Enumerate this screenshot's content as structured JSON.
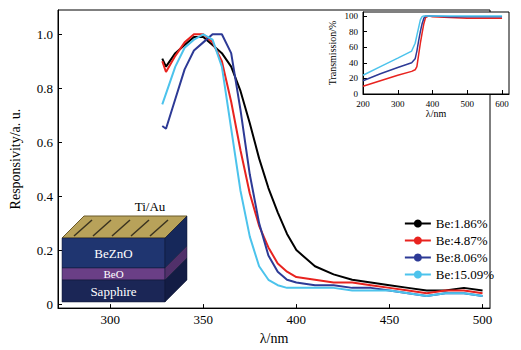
{
  "chart_data": [
    {
      "type": "line",
      "x_label": "λ/nm",
      "y_label": "Responsivity/a. u.",
      "xlim": [
        272,
        504
      ],
      "xticks": [
        300,
        350,
        400,
        450,
        500
      ],
      "ylim": [
        -0.015,
        1.09
      ],
      "yticks": [
        0,
        0.2,
        0.4,
        0.6,
        0.8,
        {
          "value": 1,
          "label": "1.0"
        }
      ],
      "grid": false,
      "legend": "lower right",
      "annotations": [
        "Ti/Au",
        "BeZnO",
        "BeO",
        "Sapphire"
      ],
      "x": [
        328,
        330,
        335,
        340,
        345,
        350,
        355,
        360,
        365,
        370,
        375,
        380,
        385,
        390,
        395,
        400,
        410,
        420,
        430,
        440,
        450,
        460,
        470,
        480,
        490,
        500
      ],
      "series": [
        {
          "name": "Be:1.86%",
          "color": "#000000",
          "marker": "none",
          "line_style": "solid",
          "values": [
            0.91,
            0.88,
            0.93,
            0.96,
            0.99,
            0.99,
            0.96,
            0.93,
            0.88,
            0.79,
            0.67,
            0.54,
            0.43,
            0.34,
            0.26,
            0.2,
            0.14,
            0.11,
            0.09,
            0.08,
            0.07,
            0.06,
            0.05,
            0.05,
            0.06,
            0.05
          ]
        },
        {
          "name": "Be:4.87%",
          "color": "#e8231f",
          "marker": "none",
          "line_style": "solid",
          "values": [
            0.9,
            0.86,
            0.92,
            0.97,
            1.0,
            1.0,
            0.97,
            0.9,
            0.75,
            0.57,
            0.41,
            0.29,
            0.21,
            0.15,
            0.12,
            0.1,
            0.09,
            0.08,
            0.08,
            0.07,
            0.06,
            0.05,
            0.04,
            0.05,
            0.05,
            0.04
          ]
        },
        {
          "name": "Be:8.06%",
          "color": "#2d3a96",
          "marker": "none",
          "line_style": "solid",
          "values": [
            0.66,
            0.65,
            0.76,
            0.87,
            0.94,
            0.97,
            1.0,
            1.0,
            0.93,
            0.72,
            0.48,
            0.3,
            0.18,
            0.12,
            0.09,
            0.08,
            0.07,
            0.07,
            0.06,
            0.06,
            0.05,
            0.04,
            0.03,
            0.04,
            0.04,
            0.03
          ]
        },
        {
          "name": "Be:15.09%",
          "color": "#4cc3ec",
          "marker": "none",
          "line_style": "solid",
          "values": [
            0.74,
            0.78,
            0.88,
            0.95,
            0.98,
            1.0,
            0.98,
            0.88,
            0.65,
            0.42,
            0.25,
            0.14,
            0.09,
            0.07,
            0.06,
            0.06,
            0.06,
            0.06,
            0.05,
            0.05,
            0.05,
            0.04,
            0.03,
            0.04,
            0.04,
            0.03
          ]
        }
      ]
    },
    {
      "type": "line",
      "x_label": "λ/nm",
      "y_label": "Transmission/%",
      "xlim": [
        200,
        620
      ],
      "xticks": [
        200,
        300,
        400,
        500,
        600
      ],
      "ylim": [
        0,
        105
      ],
      "yticks": [
        0,
        20,
        40,
        60,
        80,
        100
      ],
      "grid": false,
      "x": [
        200,
        250,
        300,
        340,
        350,
        355,
        360,
        365,
        370,
        375,
        380,
        390,
        400,
        450,
        500,
        550,
        600
      ],
      "series": [
        {
          "name": "Be:4.87%",
          "color": "#e8231f",
          "marker": "none",
          "line_style": "solid",
          "values": [
            10,
            17,
            24,
            29,
            31,
            35,
            50,
            65,
            78,
            90,
            98,
            100,
            99,
            98,
            97,
            97,
            97
          ]
        },
        {
          "name": "Be:8.06%",
          "color": "#2d3a96",
          "marker": "none",
          "line_style": "solid",
          "values": [
            17,
            26,
            34,
            40,
            45,
            55,
            68,
            80,
            90,
            97,
            100,
            100,
            100,
            99,
            99,
            99,
            99
          ]
        },
        {
          "name": "Be:15.09%",
          "color": "#4cc3ec",
          "marker": "none",
          "line_style": "solid",
          "values": [
            24,
            35,
            46,
            55,
            65,
            75,
            85,
            95,
            99,
            100,
            100,
            100,
            100,
            100,
            100,
            100,
            100
          ]
        }
      ]
    }
  ]
}
